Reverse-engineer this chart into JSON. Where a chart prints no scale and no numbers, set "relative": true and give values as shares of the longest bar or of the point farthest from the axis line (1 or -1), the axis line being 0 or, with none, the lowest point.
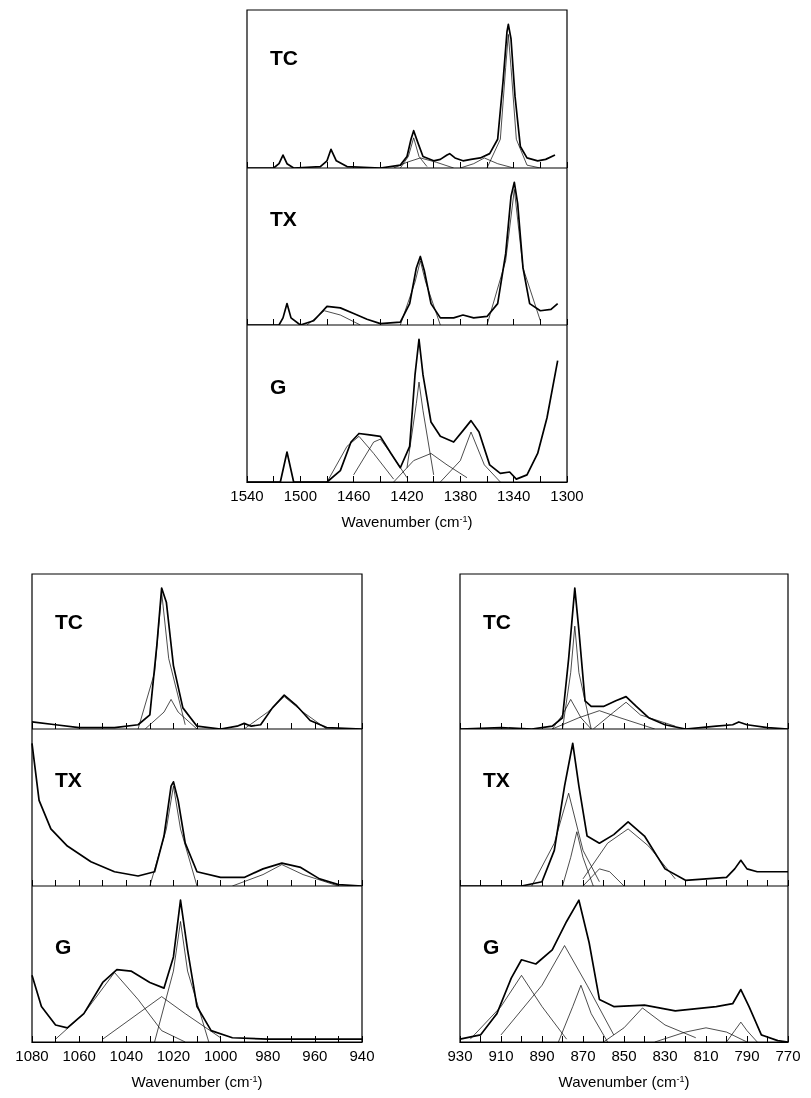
{
  "chart_data": [
    {
      "type": "line",
      "title": "TC",
      "relative": true,
      "xlim": [
        1540,
        1300
      ],
      "xticks": [
        1540,
        {
          "value": 1520,
          "label": null
        },
        1500,
        {
          "value": 1480,
          "label": null
        },
        1460,
        {
          "value": 1440,
          "label": null
        },
        1420,
        {
          "value": 1400,
          "label": null
        },
        1380,
        {
          "value": 1360,
          "label": null
        },
        1340,
        {
          "value": 1320,
          "label": null
        },
        1300
      ],
      "tick_labels": false,
      "series": [
        {
          "color": "#000000",
          "x": [
            1540,
            1520,
            1516,
            1513,
            1510,
            1505,
            1485,
            1480,
            1477,
            1473,
            1465,
            1440,
            1425,
            1420,
            1417,
            1415,
            1412,
            1408,
            1400,
            1395,
            1390,
            1388,
            1384,
            1378,
            1372,
            1365,
            1358,
            1352,
            1348,
            1345,
            1344,
            1342,
            1339,
            1335,
            1330,
            1322,
            1316,
            1309
          ],
          "values": [
            0,
            0,
            0.03,
            0.09,
            0.03,
            0,
            0.01,
            0.05,
            0.13,
            0.05,
            0.01,
            0,
            0.02,
            0.08,
            0.2,
            0.26,
            0.18,
            0.08,
            0.05,
            0.06,
            0.09,
            0.1,
            0.07,
            0.05,
            0.06,
            0.07,
            0.1,
            0.2,
            0.6,
            0.95,
            1,
            0.9,
            0.5,
            0.15,
            0.07,
            0.05,
            0.06,
            0.09
          ]
        },
        {
          "color": "#000000",
          "x": [
            1425,
            1419,
            1415,
            1411,
            1405
          ],
          "values": [
            0,
            0.08,
            0.21,
            0.08,
            0.01
          ]
        },
        {
          "color": "#000000",
          "x": [
            1430,
            1420,
            1410,
            1398,
            1385
          ],
          "values": [
            0,
            0.04,
            0.07,
            0.04,
            0
          ]
        },
        {
          "color": "#000000",
          "x": [
            1380,
            1370,
            1362,
            1352,
            1340
          ],
          "values": [
            0,
            0.03,
            0.07,
            0.03,
            0
          ]
        },
        {
          "color": "#000000",
          "x": [
            1360,
            1350,
            1346,
            1344,
            1342,
            1338,
            1330,
            1320
          ],
          "values": [
            0,
            0.2,
            0.7,
            0.93,
            0.7,
            0.2,
            0.02,
            0
          ]
        }
      ]
    },
    {
      "type": "line",
      "title": "TX",
      "relative": true,
      "xlim": [
        1540,
        1300
      ],
      "xticks": [
        1540,
        {
          "value": 1520,
          "label": null
        },
        1500,
        {
          "value": 1480,
          "label": null
        },
        1460,
        {
          "value": 1440,
          "label": null
        },
        1420,
        {
          "value": 1400,
          "label": null
        },
        1380,
        {
          "value": 1360,
          "label": null
        },
        1340,
        {
          "value": 1320,
          "label": null
        },
        1300
      ],
      "tick_labels": false,
      "series": [
        {
          "color": "#000000",
          "x": [
            1540,
            1516,
            1513,
            1510,
            1507,
            1500,
            1490,
            1480,
            1470,
            1460,
            1450,
            1440,
            1425,
            1418,
            1413,
            1410,
            1407,
            1402,
            1395,
            1385,
            1378,
            1370,
            1360,
            1352,
            1346,
            1342,
            1339.5,
            1337,
            1333,
            1328,
            1320,
            1312,
            1307
          ],
          "values": [
            0,
            0,
            0.05,
            0.15,
            0.05,
            0,
            0.03,
            0.13,
            0.12,
            0.08,
            0.04,
            0.01,
            0.02,
            0.15,
            0.4,
            0.48,
            0.38,
            0.15,
            0.05,
            0.05,
            0.07,
            0.05,
            0.06,
            0.15,
            0.5,
            0.9,
            1,
            0.85,
            0.4,
            0.15,
            0.1,
            0.11,
            0.15
          ]
        },
        {
          "color": "#000000",
          "x": [
            1495,
            1482,
            1470,
            1455
          ],
          "values": [
            0,
            0.1,
            0.07,
            0
          ]
        },
        {
          "color": "#000000",
          "x": [
            1425,
            1414,
            1410,
            1406,
            1395
          ],
          "values": [
            0,
            0.3,
            0.45,
            0.3,
            0
          ]
        },
        {
          "color": "#000000",
          "x": [
            1360,
            1346,
            1339.5,
            1333,
            1320
          ],
          "values": [
            0,
            0.45,
            0.95,
            0.4,
            0.03
          ]
        }
      ]
    },
    {
      "type": "line",
      "title": "G",
      "relative": true,
      "xlim": [
        1540,
        1300
      ],
      "xticks": [
        1540,
        {
          "value": 1520,
          "label": null
        },
        1500,
        {
          "value": 1480,
          "label": null
        },
        1460,
        {
          "value": 1440,
          "label": null
        },
        1420,
        {
          "value": 1400,
          "label": null
        },
        1380,
        {
          "value": 1360,
          "label": null
        },
        1340,
        {
          "value": 1320,
          "label": null
        },
        1300
      ],
      "tick_labels": "x",
      "xlabel": "Wavenumber (cm$^{-1}$)",
      "series": [
        {
          "color": "#000000",
          "x": [
            1540,
            1515,
            1510,
            1505,
            1480,
            1470,
            1462,
            1456,
            1448,
            1440,
            1432,
            1425,
            1418,
            1414,
            1411,
            1408,
            1402,
            1395,
            1385,
            1378,
            1372,
            1366,
            1358,
            1350,
            1343,
            1338,
            1330,
            1322,
            1315,
            1307
          ],
          "values": [
            0,
            0,
            0.21,
            0,
            0,
            0.08,
            0.28,
            0.34,
            0.33,
            0.32,
            0.2,
            0.1,
            0.25,
            0.75,
            1,
            0.75,
            0.42,
            0.32,
            0.28,
            0.36,
            0.43,
            0.35,
            0.12,
            0.06,
            0.07,
            0.02,
            0.05,
            0.2,
            0.45,
            0.85
          ]
        },
        {
          "color": "#000000",
          "x": [
            1480,
            1465,
            1456,
            1445,
            1430
          ],
          "values": [
            0,
            0.25,
            0.32,
            0.2,
            0.02
          ]
        },
        {
          "color": "#000000",
          "x": [
            1460,
            1445,
            1440,
            1432,
            1420
          ],
          "values": [
            0.05,
            0.28,
            0.3,
            0.2,
            0.03
          ]
        },
        {
          "color": "#000000",
          "x": [
            1420,
            1413,
            1411,
            1408,
            1400
          ],
          "values": [
            0.1,
            0.55,
            0.7,
            0.5,
            0.05
          ]
        },
        {
          "color": "#000000",
          "x": [
            1430,
            1415,
            1402,
            1390,
            1375
          ],
          "values": [
            0,
            0.15,
            0.2,
            0.12,
            0.03
          ]
        },
        {
          "color": "#000000",
          "x": [
            1395,
            1380,
            1372,
            1362,
            1350
          ],
          "values": [
            0,
            0.15,
            0.35,
            0.12,
            0
          ]
        }
      ]
    },
    {
      "type": "line",
      "title": "TC",
      "relative": true,
      "xlim": [
        1080,
        940
      ],
      "xticks": [
        1080,
        {
          "value": 1070,
          "label": null
        },
        1060,
        {
          "value": 1050,
          "label": null
        },
        1040,
        {
          "value": 1030,
          "label": null
        },
        1020,
        {
          "value": 1010,
          "label": null
        },
        1000,
        {
          "value": 990,
          "label": null
        },
        980,
        {
          "value": 970,
          "label": null
        },
        960,
        {
          "value": 950,
          "label": null
        },
        940
      ],
      "tick_labels": false,
      "series": [
        {
          "color": "#000000",
          "x": [
            1080,
            1070,
            1060,
            1045,
            1035,
            1030,
            1027,
            1025,
            1023,
            1020,
            1016,
            1010,
            1000,
            993,
            990,
            987,
            983,
            978,
            973,
            968,
            962,
            955,
            940
          ],
          "values": [
            0.05,
            0.03,
            0.01,
            0.01,
            0.03,
            0.1,
            0.6,
            1,
            0.9,
            0.45,
            0.15,
            0.02,
            0,
            0.02,
            0.04,
            0.02,
            0.03,
            0.15,
            0.24,
            0.17,
            0.06,
            0.01,
            0
          ]
        },
        {
          "color": "#000000",
          "x": [
            1035,
            1028,
            1025,
            1022,
            1015
          ],
          "values": [
            0,
            0.4,
            0.97,
            0.5,
            0.03
          ]
        },
        {
          "color": "#000000",
          "x": [
            1032,
            1024,
            1021,
            1018,
            1010
          ],
          "values": [
            0,
            0.12,
            0.21,
            0.12,
            0
          ]
        },
        {
          "color": "#000000",
          "x": [
            990,
            980,
            973,
            965,
            955
          ],
          "values": [
            0,
            0.12,
            0.23,
            0.12,
            0
          ]
        }
      ]
    },
    {
      "type": "line",
      "title": "TX",
      "relative": true,
      "xlim": [
        1080,
        940
      ],
      "xticks": [
        1080,
        {
          "value": 1070,
          "label": null
        },
        1060,
        {
          "value": 1050,
          "label": null
        },
        1040,
        {
          "value": 1030,
          "label": null
        },
        1020,
        {
          "value": 1010,
          "label": null
        },
        1000,
        {
          "value": 990,
          "label": null
        },
        980,
        {
          "value": 970,
          "label": null
        },
        960,
        {
          "value": 950,
          "label": null
        },
        940
      ],
      "tick_labels": false,
      "series": [
        {
          "color": "#000000",
          "x": [
            1080,
            1077,
            1072,
            1065,
            1055,
            1045,
            1035,
            1028,
            1024,
            1021,
            1020,
            1018,
            1015,
            1010,
            1000,
            990,
            982,
            974,
            966,
            958,
            950,
            940
          ],
          "values": [
            1,
            0.6,
            0.4,
            0.28,
            0.17,
            0.1,
            0.07,
            0.1,
            0.35,
            0.7,
            0.73,
            0.6,
            0.3,
            0.1,
            0.06,
            0.06,
            0.12,
            0.16,
            0.13,
            0.05,
            0.01,
            0
          ]
        },
        {
          "color": "#000000",
          "x": [
            1030,
            1023,
            1020,
            1017,
            1010
          ],
          "values": [
            0,
            0.4,
            0.7,
            0.4,
            0
          ]
        },
        {
          "color": "#000000",
          "x": [
            995,
            982,
            974,
            965,
            950
          ],
          "values": [
            0,
            0.08,
            0.15,
            0.08,
            0
          ]
        }
      ]
    },
    {
      "type": "line",
      "title": "G",
      "relative": true,
      "xlim": [
        1080,
        940
      ],
      "xticks": [
        1080,
        {
          "value": 1070,
          "label": null
        },
        1060,
        {
          "value": 1050,
          "label": null
        },
        1040,
        {
          "value": 1030,
          "label": null
        },
        1020,
        {
          "value": 1010,
          "label": null
        },
        1000,
        {
          "value": 990,
          "label": null
        },
        980,
        {
          "value": 970,
          "label": null
        },
        960,
        {
          "value": 950,
          "label": null
        },
        940
      ],
      "tick_labels": "x",
      "xlabel": "Wavenumber (cm$^{-1}$)",
      "series": [
        {
          "color": "#000000",
          "x": [
            1080,
            1076,
            1070,
            1065,
            1058,
            1050,
            1044,
            1038,
            1030,
            1024,
            1020,
            1017,
            1014,
            1010,
            1004,
            995,
            980,
            960,
            940
          ],
          "values": [
            0.47,
            0.25,
            0.12,
            0.1,
            0.2,
            0.42,
            0.51,
            0.5,
            0.42,
            0.38,
            0.6,
            1,
            0.65,
            0.25,
            0.08,
            0.03,
            0.02,
            0.02,
            0.02
          ]
        },
        {
          "color": "#000000",
          "x": [
            1070,
            1058,
            1045,
            1035,
            1025,
            1015
          ],
          "values": [
            0.02,
            0.2,
            0.49,
            0.3,
            0.08,
            0
          ]
        },
        {
          "color": "#000000",
          "x": [
            1050,
            1035,
            1025,
            1015,
            1000
          ],
          "values": [
            0.02,
            0.2,
            0.32,
            0.2,
            0.03
          ]
        },
        {
          "color": "#000000",
          "x": [
            1028,
            1020,
            1017,
            1014,
            1005
          ],
          "values": [
            0,
            0.5,
            0.85,
            0.5,
            0
          ]
        }
      ]
    },
    {
      "type": "line",
      "title": "TC",
      "relative": true,
      "xlim": [
        930,
        770
      ],
      "xticks": [
        930,
        {
          "value": 920,
          "label": null
        },
        910,
        {
          "value": 900,
          "label": null
        },
        890,
        {
          "value": 880,
          "label": null
        },
        870,
        {
          "value": 860,
          "label": null
        },
        850,
        {
          "value": 840,
          "label": null
        },
        830,
        {
          "value": 820,
          "label": null
        },
        810,
        {
          "value": 800,
          "label": null
        },
        790,
        {
          "value": 780,
          "label": null
        },
        770
      ],
      "tick_labels": false,
      "series": [
        {
          "color": "#000000",
          "x": [
            930,
            910,
            895,
            885,
            880,
            877,
            874,
            872,
            869,
            866,
            860,
            854,
            849,
            844,
            838,
            830,
            820,
            805,
            797,
            794,
            790,
            780,
            770
          ],
          "values": [
            0,
            0.01,
            0,
            0.02,
            0.08,
            0.5,
            1,
            0.7,
            0.2,
            0.16,
            0.16,
            0.2,
            0.23,
            0.16,
            0.08,
            0.03,
            0,
            0.02,
            0.03,
            0.05,
            0.03,
            0.01,
            0
          ]
        },
        {
          "color": "#000000",
          "x": [
            880,
            876,
            874,
            872,
            866
          ],
          "values": [
            0,
            0.4,
            0.73,
            0.4,
            0
          ]
        },
        {
          "color": "#000000",
          "x": [
            885,
            880,
            876,
            871,
            866
          ],
          "values": [
            0,
            0.1,
            0.21,
            0.08,
            0
          ]
        },
        {
          "color": "#000000",
          "x": [
            885,
            872,
            862,
            852,
            835
          ],
          "values": [
            0,
            0.08,
            0.13,
            0.08,
            0
          ]
        },
        {
          "color": "#000000",
          "x": [
            865,
            855,
            849,
            842,
            825
          ],
          "values": [
            0,
            0.12,
            0.19,
            0.1,
            0.02
          ]
        }
      ]
    },
    {
      "type": "line",
      "title": "TX",
      "relative": true,
      "xlim": [
        930,
        770
      ],
      "xticks": [
        930,
        {
          "value": 920,
          "label": null
        },
        910,
        {
          "value": 900,
          "label": null
        },
        890,
        {
          "value": 880,
          "label": null
        },
        870,
        {
          "value": 860,
          "label": null
        },
        850,
        {
          "value": 840,
          "label": null
        },
        830,
        {
          "value": 820,
          "label": null
        },
        810,
        {
          "value": 800,
          "label": null
        },
        790,
        {
          "value": 780,
          "label": null
        },
        770
      ],
      "tick_labels": false,
      "series": [
        {
          "color": "#000000",
          "x": [
            930,
            900,
            890,
            884,
            879,
            875,
            872,
            868,
            862,
            855,
            848,
            840,
            830,
            820,
            800,
            796,
            793,
            790,
            785,
            770
          ],
          "values": [
            0,
            0,
            0.03,
            0.25,
            0.7,
            1,
            0.7,
            0.35,
            0.3,
            0.36,
            0.45,
            0.35,
            0.12,
            0.04,
            0.06,
            0.12,
            0.18,
            0.12,
            0.1,
            0.1
          ]
        },
        {
          "color": "#000000",
          "x": [
            895,
            884,
            877,
            870,
            862
          ],
          "values": [
            0,
            0.3,
            0.65,
            0.25,
            0.03
          ]
        },
        {
          "color": "#000000",
          "x": [
            880,
            876,
            873,
            870,
            865
          ],
          "values": [
            0,
            0.2,
            0.38,
            0.2,
            0
          ]
        },
        {
          "color": "#000000",
          "x": [
            870,
            862,
            857,
            850
          ],
          "values": [
            0,
            0.12,
            0.1,
            0
          ]
        },
        {
          "color": "#000000",
          "x": [
            870,
            858,
            848,
            838,
            825
          ],
          "values": [
            0.05,
            0.3,
            0.4,
            0.28,
            0.05
          ]
        }
      ]
    },
    {
      "type": "line",
      "title": "G",
      "relative": true,
      "xlim": [
        930,
        770
      ],
      "xticks": [
        930,
        {
          "value": 920,
          "label": null
        },
        910,
        {
          "value": 900,
          "label": null
        },
        890,
        {
          "value": 880,
          "label": null
        },
        870,
        {
          "value": 860,
          "label": null
        },
        850,
        {
          "value": 840,
          "label": null
        },
        830,
        {
          "value": 820,
          "label": null
        },
        810,
        {
          "value": 800,
          "label": null
        },
        790,
        {
          "value": 780,
          "label": null
        },
        770
      ],
      "tick_labels": "x",
      "xlabel": "Wavenumber (cm$^{-1}$)",
      "series": [
        {
          "color": "#000000",
          "x": [
            930,
            920,
            912,
            905,
            900,
            893,
            885,
            878,
            872,
            867,
            862,
            855,
            840,
            825,
            805,
            797,
            793,
            789,
            783,
            775,
            770
          ],
          "values": [
            0.02,
            0.05,
            0.2,
            0.45,
            0.58,
            0.55,
            0.65,
            0.85,
            1,
            0.7,
            0.3,
            0.25,
            0.26,
            0.22,
            0.25,
            0.27,
            0.37,
            0.25,
            0.05,
            0.01,
            0
          ]
        },
        {
          "color": "#000000",
          "x": [
            925,
            910,
            900,
            890,
            878
          ],
          "values": [
            0.02,
            0.25,
            0.47,
            0.25,
            0.02
          ]
        },
        {
          "color": "#000000",
          "x": [
            910,
            890,
            879,
            868,
            855
          ],
          "values": [
            0.05,
            0.4,
            0.68,
            0.4,
            0.05
          ]
        },
        {
          "color": "#000000",
          "x": [
            882,
            875,
            871,
            866,
            858
          ],
          "values": [
            0,
            0.25,
            0.4,
            0.2,
            0
          ]
        },
        {
          "color": "#000000",
          "x": [
            860,
            850,
            841,
            830,
            815
          ],
          "values": [
            0,
            0.1,
            0.24,
            0.12,
            0.03
          ]
        },
        {
          "color": "#000000",
          "x": [
            835,
            820,
            810,
            800,
            790
          ],
          "values": [
            0,
            0.07,
            0.1,
            0.07,
            0
          ]
        },
        {
          "color": "#000000",
          "x": [
            800,
            796,
            793,
            790,
            785
          ],
          "values": [
            0,
            0.08,
            0.14,
            0.08,
            0
          ]
        }
      ]
    }
  ]
}
